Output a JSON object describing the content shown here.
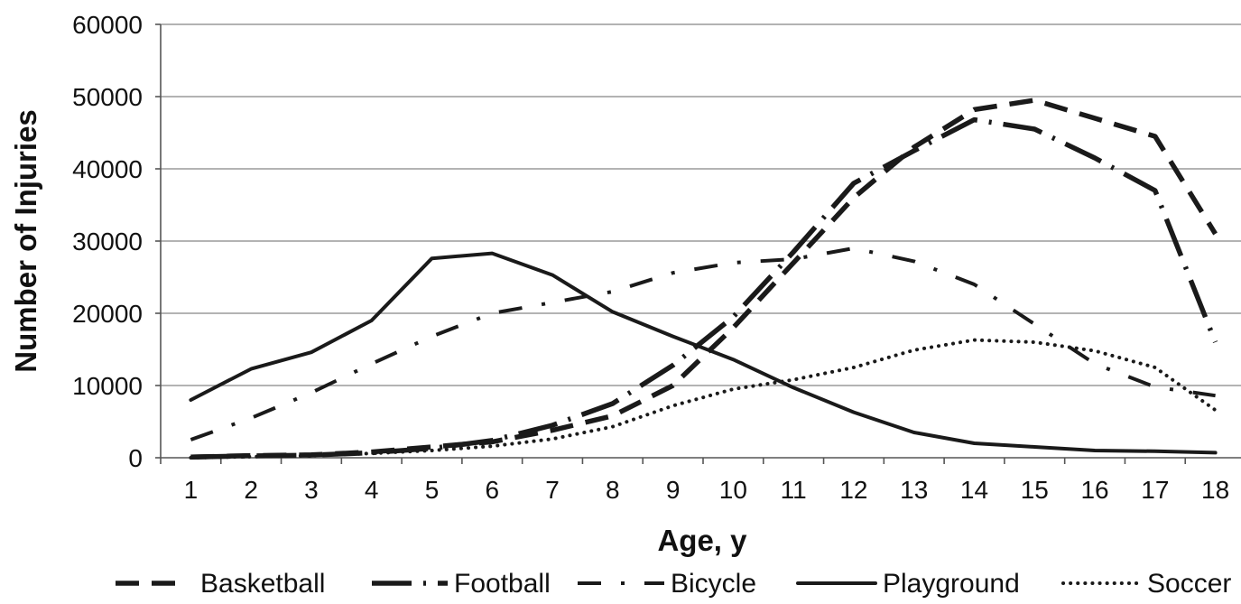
{
  "chart_data": {
    "type": "line",
    "title": "",
    "xlabel": "Age, y",
    "ylabel": "Number of Injuries",
    "x": [
      1,
      2,
      3,
      4,
      5,
      6,
      7,
      8,
      9,
      10,
      11,
      12,
      13,
      14,
      15,
      16,
      17,
      18
    ],
    "ylim": [
      0,
      60000
    ],
    "yticks": [
      0,
      10000,
      20000,
      30000,
      40000,
      50000,
      60000
    ],
    "grid": "horizontal",
    "legend_position": "bottom",
    "series": [
      {
        "name": "Basketball",
        "style": "dash",
        "values": [
          100,
          300,
          400,
          800,
          1500,
          2200,
          3800,
          5800,
          10000,
          18000,
          27000,
          36000,
          43000,
          48200,
          49500,
          47000,
          44500,
          31000
        ]
      },
      {
        "name": "Football",
        "style": "long-dash-dot",
        "values": [
          100,
          250,
          350,
          700,
          1300,
          2400,
          4500,
          7500,
          12800,
          19500,
          28500,
          38000,
          42500,
          46800,
          45500,
          41500,
          37000,
          16000
        ]
      },
      {
        "name": "Bicycle",
        "style": "dash-dot",
        "values": [
          2500,
          5500,
          9000,
          13000,
          16800,
          20000,
          21500,
          23000,
          25600,
          27000,
          27500,
          29000,
          27200,
          24000,
          18500,
          13000,
          9800,
          8600
        ]
      },
      {
        "name": "Playground",
        "style": "solid",
        "values": [
          8000,
          12300,
          14600,
          19000,
          27600,
          28300,
          25300,
          20200,
          16800,
          13600,
          9700,
          6300,
          3500,
          2000,
          1500,
          1000,
          900,
          700
        ]
      },
      {
        "name": "Soccer",
        "style": "dot",
        "values": [
          0,
          150,
          300,
          600,
          1000,
          1600,
          2600,
          4300,
          7200,
          9500,
          10800,
          12500,
          14900,
          16300,
          16000,
          14800,
          12500,
          6600
        ]
      }
    ]
  }
}
